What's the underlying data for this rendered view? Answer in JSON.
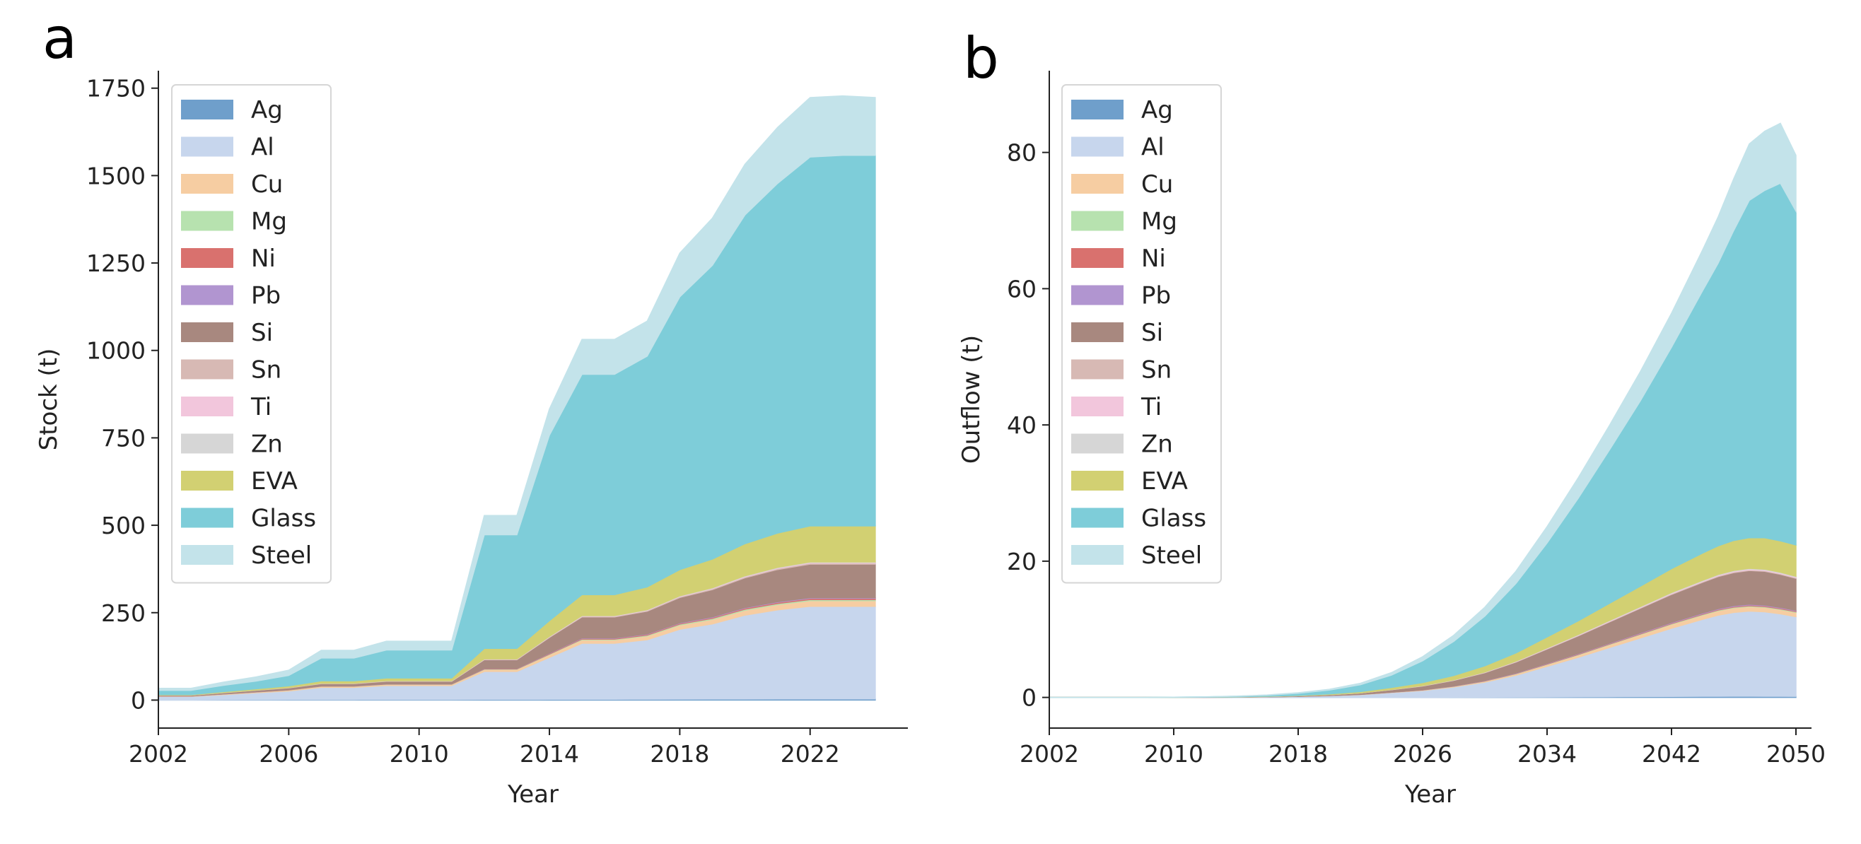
{
  "panels": [
    {
      "letter": "a"
    },
    {
      "letter": "b"
    }
  ],
  "chart_data": [
    {
      "type": "area",
      "stacked": true,
      "xlabel": "Year",
      "ylabel": "Stock (t)",
      "xlim": [
        2002,
        2025
      ],
      "ylim": [
        -80,
        1800
      ],
      "xticks": [
        2002,
        2006,
        2010,
        2014,
        2018,
        2022
      ],
      "yticks": [
        0,
        250,
        500,
        750,
        1000,
        1250,
        1500,
        1750
      ],
      "legend_position": "upper-left",
      "x": [
        2002,
        2003,
        2004,
        2005,
        2006,
        2007,
        2008,
        2009,
        2010,
        2011,
        2012,
        2013,
        2014,
        2015,
        2016,
        2017,
        2018,
        2019,
        2020,
        2021,
        2022,
        2023,
        2024
      ],
      "series": [
        {
          "name": "Ag",
          "color": "#6f9fcb",
          "values": [
            0.5,
            0.5,
            0.8,
            1,
            1.2,
            1.5,
            1.5,
            1.6,
            1.6,
            1.6,
            2,
            2,
            2.2,
            2.5,
            2.5,
            2.6,
            2.8,
            3,
            3,
            3.2,
            3.3,
            3.3,
            3.3
          ]
        },
        {
          "name": "Al",
          "color": "#c7d6ed",
          "values": [
            10,
            10,
            15,
            20,
            25,
            35,
            35,
            40,
            40,
            40,
            80,
            80,
            120,
            160,
            160,
            170,
            200,
            215,
            240,
            255,
            265,
            265,
            265
          ]
        },
        {
          "name": "Cu",
          "color": "#f6cda2",
          "values": [
            1,
            1,
            1.5,
            2,
            2.5,
            3,
            3,
            3.5,
            3.5,
            3.5,
            6,
            6,
            8,
            10,
            10,
            11,
            12,
            13,
            14,
            15,
            16,
            16,
            16
          ]
        },
        {
          "name": "Mg",
          "color": "#b7e2af",
          "values": [
            0.2,
            0.2,
            0.3,
            0.4,
            0.5,
            0.6,
            0.6,
            0.7,
            0.7,
            0.7,
            1,
            1,
            1.5,
            2,
            2,
            2.2,
            2.5,
            2.7,
            3,
            3.2,
            3.3,
            3.3,
            3.3
          ]
        },
        {
          "name": "Ni",
          "color": "#d9716e",
          "values": [
            0.2,
            0.2,
            0.3,
            0.4,
            0.5,
            0.6,
            0.6,
            0.7,
            0.7,
            0.7,
            1,
            1,
            1.5,
            2,
            2,
            2.2,
            2.5,
            2.7,
            3,
            3.2,
            3.3,
            3.3,
            3.3
          ]
        },
        {
          "name": "Pb",
          "color": "#b195d0",
          "values": [
            0.1,
            0.1,
            0.2,
            0.3,
            0.3,
            0.4,
            0.4,
            0.4,
            0.4,
            0.4,
            0.7,
            0.7,
            1,
            1.2,
            1.2,
            1.3,
            1.5,
            1.6,
            1.7,
            1.8,
            1.9,
            1.9,
            1.9
          ]
        },
        {
          "name": "Si",
          "color": "#a8887f",
          "values": [
            2,
            2,
            3,
            4,
            5,
            6,
            6,
            7,
            7,
            7,
            25,
            25,
            45,
            60,
            60,
            65,
            72,
            78,
            85,
            92,
            96,
            96,
            96
          ]
        },
        {
          "name": "Sn",
          "color": "#d7b9b4",
          "values": [
            0.2,
            0.2,
            0.3,
            0.4,
            0.5,
            0.6,
            0.6,
            0.7,
            0.7,
            0.7,
            1,
            1,
            1.5,
            2,
            2,
            2.2,
            2.5,
            2.7,
            3,
            3.2,
            3.3,
            3.3,
            3.3
          ]
        },
        {
          "name": "Ti",
          "color": "#f2c6dc",
          "values": [
            0.1,
            0.1,
            0.2,
            0.2,
            0.3,
            0.3,
            0.3,
            0.4,
            0.4,
            0.4,
            0.6,
            0.6,
            0.8,
            1,
            1,
            1.1,
            1.2,
            1.3,
            1.4,
            1.5,
            1.5,
            1.5,
            1.5
          ]
        },
        {
          "name": "Zn",
          "color": "#d6d6d6",
          "values": [
            0.1,
            0.1,
            0.2,
            0.2,
            0.3,
            0.3,
            0.3,
            0.4,
            0.4,
            0.4,
            0.6,
            0.6,
            0.8,
            1,
            1,
            1.1,
            1.2,
            1.3,
            1.4,
            1.5,
            1.5,
            1.5,
            1.5
          ]
        },
        {
          "name": "EVA",
          "color": "#d2d072",
          "values": [
            1.5,
            1.5,
            2.5,
            3.5,
            4.5,
            7,
            7,
            8,
            8,
            8,
            30,
            30,
            45,
            60,
            60,
            65,
            75,
            82,
            92,
            98,
            103,
            103,
            103
          ]
        },
        {
          "name": "Glass",
          "color": "#7ecdd9",
          "values": [
            12,
            12,
            18,
            22,
            30,
            65,
            65,
            80,
            80,
            80,
            325,
            325,
            530,
            630,
            630,
            660,
            780,
            840,
            940,
            1000,
            1055,
            1060,
            1060
          ]
        },
        {
          "name": "Steel",
          "color": "#c3e3ea",
          "values": [
            6,
            6,
            9,
            12,
            15,
            22,
            22,
            25,
            25,
            25,
            55,
            55,
            75,
            100,
            100,
            100,
            125,
            135,
            145,
            160,
            170,
            170,
            165
          ]
        }
      ]
    },
    {
      "type": "area",
      "stacked": true,
      "xlabel": "Year",
      "ylabel": "Outflow (t)",
      "xlim": [
        2002,
        2051
      ],
      "ylim": [
        -4.5,
        92
      ],
      "xticks": [
        2002,
        2010,
        2018,
        2026,
        2034,
        2042,
        2050
      ],
      "yticks": [
        0,
        20,
        40,
        60,
        80
      ],
      "legend_position": "upper-left",
      "x": [
        2002,
        2004,
        2006,
        2008,
        2010,
        2012,
        2014,
        2016,
        2018,
        2020,
        2022,
        2024,
        2026,
        2028,
        2030,
        2032,
        2034,
        2036,
        2038,
        2040,
        2042,
        2044,
        2045,
        2046,
        2047,
        2048,
        2049,
        2050
      ],
      "series": [
        {
          "name": "Ag",
          "color": "#6f9fcb",
          "values": [
            0,
            0,
            0,
            0,
            0,
            0,
            0,
            0,
            0.001,
            0.002,
            0.004,
            0.008,
            0.015,
            0.025,
            0.04,
            0.055,
            0.07,
            0.09,
            0.11,
            0.13,
            0.15,
            0.165,
            0.17,
            0.175,
            0.175,
            0.17,
            0.165,
            0.16
          ]
        },
        {
          "name": "Al",
          "color": "#c7d6ed",
          "values": [
            0,
            0,
            0,
            0,
            0.01,
            0.02,
            0.04,
            0.08,
            0.15,
            0.25,
            0.4,
            0.7,
            1.0,
            1.5,
            2.2,
            3.2,
            4.5,
            5.8,
            7.2,
            8.6,
            10.0,
            11.3,
            11.9,
            12.3,
            12.5,
            12.4,
            12.1,
            11.7
          ]
        },
        {
          "name": "Cu",
          "color": "#f6cda2",
          "values": [
            0,
            0,
            0,
            0,
            0,
            0,
            0.002,
            0.004,
            0.008,
            0.015,
            0.025,
            0.04,
            0.06,
            0.1,
            0.14,
            0.2,
            0.27,
            0.35,
            0.43,
            0.5,
            0.58,
            0.63,
            0.65,
            0.67,
            0.67,
            0.66,
            0.64,
            0.62
          ]
        },
        {
          "name": "Mg",
          "color": "#b7e2af",
          "values": [
            0,
            0,
            0,
            0,
            0,
            0,
            0.001,
            0.002,
            0.003,
            0.005,
            0.008,
            0.012,
            0.018,
            0.025,
            0.035,
            0.045,
            0.055,
            0.065,
            0.075,
            0.085,
            0.095,
            0.1,
            0.105,
            0.108,
            0.11,
            0.108,
            0.105,
            0.1
          ]
        },
        {
          "name": "Ni",
          "color": "#d9716e",
          "values": [
            0,
            0,
            0,
            0,
            0,
            0,
            0.001,
            0.002,
            0.003,
            0.005,
            0.008,
            0.012,
            0.018,
            0.025,
            0.035,
            0.045,
            0.055,
            0.065,
            0.075,
            0.085,
            0.095,
            0.1,
            0.105,
            0.108,
            0.11,
            0.108,
            0.105,
            0.1
          ]
        },
        {
          "name": "Pb",
          "color": "#b195d0",
          "values": [
            0,
            0,
            0,
            0,
            0,
            0,
            0.001,
            0.002,
            0.003,
            0.005,
            0.008,
            0.012,
            0.018,
            0.025,
            0.035,
            0.045,
            0.055,
            0.065,
            0.075,
            0.085,
            0.095,
            0.1,
            0.105,
            0.108,
            0.11,
            0.108,
            0.105,
            0.1
          ]
        },
        {
          "name": "Si",
          "color": "#a8887f",
          "values": [
            0,
            0,
            0,
            0,
            0,
            0.01,
            0.02,
            0.04,
            0.07,
            0.12,
            0.2,
            0.35,
            0.55,
            0.8,
            1.15,
            1.6,
            2.1,
            2.6,
            3.1,
            3.6,
            4.1,
            4.5,
            4.7,
            4.85,
            4.95,
            4.95,
            4.85,
            4.7
          ]
        },
        {
          "name": "Sn",
          "color": "#d7b9b4",
          "values": [
            0,
            0,
            0,
            0,
            0,
            0,
            0.001,
            0.002,
            0.003,
            0.005,
            0.008,
            0.012,
            0.018,
            0.025,
            0.035,
            0.045,
            0.055,
            0.065,
            0.075,
            0.085,
            0.095,
            0.1,
            0.105,
            0.108,
            0.11,
            0.108,
            0.105,
            0.1
          ]
        },
        {
          "name": "Ti",
          "color": "#f2c6dc",
          "values": [
            0,
            0,
            0,
            0,
            0,
            0,
            0.001,
            0.002,
            0.003,
            0.005,
            0.008,
            0.012,
            0.018,
            0.025,
            0.035,
            0.045,
            0.055,
            0.065,
            0.075,
            0.085,
            0.095,
            0.1,
            0.105,
            0.108,
            0.11,
            0.108,
            0.105,
            0.1
          ]
        },
        {
          "name": "Zn",
          "color": "#d6d6d6",
          "values": [
            0,
            0,
            0,
            0,
            0,
            0,
            0.001,
            0.002,
            0.003,
            0.005,
            0.008,
            0.012,
            0.018,
            0.025,
            0.035,
            0.045,
            0.055,
            0.065,
            0.075,
            0.085,
            0.095,
            0.1,
            0.105,
            0.108,
            0.11,
            0.108,
            0.105,
            0.1
          ]
        },
        {
          "name": "EVA",
          "color": "#d2d072",
          "values": [
            0,
            0,
            0,
            0,
            0,
            0.01,
            0.02,
            0.04,
            0.06,
            0.1,
            0.18,
            0.3,
            0.45,
            0.65,
            0.9,
            1.2,
            1.6,
            2.0,
            2.5,
            3.0,
            3.5,
            4.0,
            4.2,
            4.4,
            4.5,
            4.6,
            4.6,
            4.6
          ]
        },
        {
          "name": "Glass",
          "color": "#7ecdd9",
          "values": [
            0,
            0,
            0,
            0,
            0.02,
            0.04,
            0.08,
            0.15,
            0.3,
            0.55,
            1.0,
            1.8,
            3.2,
            5.0,
            7.3,
            10.2,
            13.8,
            18.0,
            22.5,
            27.2,
            32.5,
            38.5,
            41.5,
            45.5,
            49.5,
            51.0,
            52.5,
            49.0
          ]
        },
        {
          "name": "Steel",
          "color": "#c3e3ea",
          "values": [
            0,
            0,
            0,
            0,
            0,
            0.01,
            0.02,
            0.04,
            0.08,
            0.13,
            0.22,
            0.38,
            0.6,
            0.9,
            1.3,
            1.8,
            2.4,
            3.0,
            3.6,
            4.3,
            5.0,
            6.0,
            6.8,
            7.6,
            8.3,
            8.7,
            8.8,
            8.2
          ]
        }
      ]
    }
  ]
}
